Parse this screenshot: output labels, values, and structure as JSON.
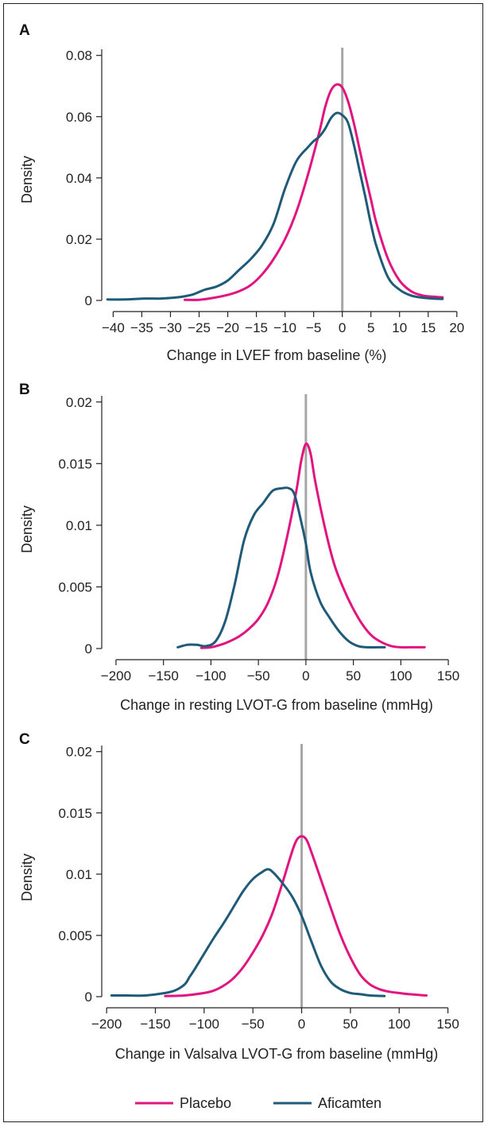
{
  "colors": {
    "placebo": "#e0157f",
    "aficamten": "#1f5a78",
    "zero_line": "#a6a6a6",
    "axis": "#222222"
  },
  "legend": {
    "position": "bottom-center",
    "items": [
      {
        "label": "Placebo",
        "color": "#e0157f"
      },
      {
        "label": "Aficamten",
        "color": "#1f5a78"
      }
    ]
  },
  "chart_data": [
    {
      "type": "line",
      "panel": "A",
      "xlabel": "Change in LVEF from baseline (%)",
      "ylabel": "Density",
      "xlim": [
        -42,
        21
      ],
      "ylim": [
        0,
        0.082
      ],
      "xticks": [
        -40,
        -35,
        -30,
        -25,
        -20,
        -15,
        -10,
        -5,
        0,
        5,
        10,
        15,
        20
      ],
      "xtick_labels": [
        "−40",
        "−35",
        "−30",
        "−25",
        "−20",
        "−15",
        "−10",
        "−5",
        "0",
        "5",
        "10",
        "15",
        "20"
      ],
      "yticks": [
        0,
        0.02,
        0.04,
        0.06,
        0.08
      ],
      "ytick_labels": [
        "0",
        "0.02",
        "0.04",
        "0.06",
        "0.08"
      ],
      "reference_line_x": 0,
      "series": [
        {
          "name": "Placebo",
          "color": "#e0157f",
          "x": [
            -27.5,
            -25,
            -22,
            -20,
            -18,
            -16,
            -14,
            -12,
            -10,
            -8,
            -6,
            -4,
            -3,
            -2,
            -1,
            0,
            1,
            2,
            3,
            4,
            5,
            6,
            8,
            10,
            12,
            14,
            16,
            17.5
          ],
          "y": [
            0.0002,
            0.0002,
            0.001,
            0.0018,
            0.003,
            0.005,
            0.0085,
            0.0135,
            0.02,
            0.029,
            0.041,
            0.055,
            0.063,
            0.0685,
            0.0705,
            0.0695,
            0.065,
            0.058,
            0.0495,
            0.041,
            0.033,
            0.025,
            0.0135,
            0.0065,
            0.003,
            0.0016,
            0.0012,
            0.001
          ]
        },
        {
          "name": "Aficamten",
          "color": "#1f5a78",
          "x": [
            -41,
            -38,
            -35,
            -32,
            -30,
            -28,
            -26,
            -24,
            -22,
            -20,
            -18,
            -16,
            -14,
            -12,
            -10,
            -8,
            -6,
            -5,
            -4,
            -3,
            -2,
            -1,
            0,
            1,
            2,
            3,
            4,
            5,
            6,
            8,
            10,
            12,
            14,
            16,
            17.5
          ],
          "y": [
            0.0003,
            0.0003,
            0.0006,
            0.0006,
            0.0008,
            0.0012,
            0.002,
            0.0035,
            0.0045,
            0.0065,
            0.01,
            0.0135,
            0.018,
            0.025,
            0.0365,
            0.0455,
            0.05,
            0.052,
            0.0535,
            0.056,
            0.0595,
            0.0612,
            0.0605,
            0.058,
            0.051,
            0.0425,
            0.034,
            0.025,
            0.0175,
            0.0075,
            0.0035,
            0.0016,
            0.0009,
            0.0006,
            0.0005
          ]
        }
      ]
    },
    {
      "type": "line",
      "panel": "B",
      "xlabel": "Change in resting LVOT-G from baseline (mmHg)",
      "ylabel": "Density",
      "xlim": [
        -215,
        165
      ],
      "ylim": [
        0,
        0.0205
      ],
      "xticks": [
        -200,
        -150,
        -100,
        -50,
        0,
        50,
        100,
        150
      ],
      "xtick_labels": [
        "−200",
        "−150",
        "−100",
        "−50",
        "0",
        "50",
        "100",
        "150"
      ],
      "yticks": [
        0,
        0.005,
        0.01,
        0.015,
        0.02
      ],
      "ytick_labels": [
        "0",
        "0.005",
        "0.01",
        "0.015",
        "0.02"
      ],
      "reference_line_x": 0,
      "series": [
        {
          "name": "Placebo",
          "color": "#e0157f",
          "x": [
            -110,
            -100,
            -90,
            -80,
            -70,
            -60,
            -50,
            -40,
            -30,
            -20,
            -10,
            -5,
            0,
            5,
            10,
            20,
            30,
            40,
            50,
            60,
            70,
            80,
            90,
            100,
            110,
            125
          ],
          "y": [
            5e-05,
            0.0001,
            0.0003,
            0.0006,
            0.001,
            0.0016,
            0.0024,
            0.0037,
            0.0058,
            0.009,
            0.0128,
            0.0152,
            0.0166,
            0.0158,
            0.0135,
            0.0098,
            0.0068,
            0.0048,
            0.0032,
            0.0019,
            0.001,
            0.0005,
            0.0002,
            0.0001,
            0.0001,
            0.0001
          ]
        },
        {
          "name": "Aficamten",
          "color": "#1f5a78",
          "x": [
            -135,
            -125,
            -115,
            -105,
            -95,
            -85,
            -75,
            -65,
            -55,
            -45,
            -35,
            -25,
            -18,
            -12,
            -5,
            0,
            5,
            15,
            25,
            35,
            45,
            55,
            65,
            75,
            83
          ],
          "y": [
            0.0001,
            0.0003,
            0.0003,
            0.0002,
            0.0006,
            0.0022,
            0.0052,
            0.0088,
            0.0108,
            0.0118,
            0.0128,
            0.013,
            0.013,
            0.0125,
            0.0103,
            0.0085,
            0.0062,
            0.0038,
            0.0025,
            0.0014,
            0.0006,
            0.0002,
            0.0001,
            0.0001,
            0.0001
          ]
        }
      ]
    },
    {
      "type": "line",
      "panel": "C",
      "xlabel": "Change in Valsalva LVOT-G from baseline (mmHg)",
      "ylabel": "Density",
      "xlim": [
        -205,
        165
      ],
      "ylim": [
        0,
        0.0205
      ],
      "xticks": [
        -200,
        -150,
        -100,
        -50,
        0,
        50,
        100,
        150
      ],
      "xtick_labels": [
        "−200",
        "−150",
        "−100",
        "−50",
        "0",
        "50",
        "100",
        "150"
      ],
      "yticks": [
        0,
        0.005,
        0.01,
        0.015,
        0.02
      ],
      "ytick_labels": [
        "0",
        "0.005",
        "0.01",
        "0.015",
        "0.02"
      ],
      "reference_line_x": 0,
      "series": [
        {
          "name": "Placebo",
          "color": "#e0157f",
          "x": [
            -140,
            -120,
            -100,
            -90,
            -80,
            -70,
            -60,
            -50,
            -40,
            -30,
            -20,
            -10,
            -5,
            0,
            5,
            10,
            20,
            30,
            40,
            50,
            60,
            70,
            80,
            90,
            100,
            110,
            128
          ],
          "y": [
            5e-05,
            0.0001,
            0.0003,
            0.0005,
            0.0009,
            0.0015,
            0.0024,
            0.0036,
            0.005,
            0.0068,
            0.0092,
            0.0118,
            0.0128,
            0.0131,
            0.0128,
            0.0118,
            0.0095,
            0.0072,
            0.005,
            0.0032,
            0.0018,
            0.001,
            0.0006,
            0.0004,
            0.0003,
            0.0002,
            0.0001
          ]
        },
        {
          "name": "Aficamten",
          "color": "#1f5a78",
          "x": [
            -195,
            -180,
            -160,
            -140,
            -130,
            -120,
            -115,
            -110,
            -100,
            -90,
            -80,
            -70,
            -60,
            -50,
            -40,
            -35,
            -30,
            -20,
            -10,
            0,
            10,
            20,
            30,
            40,
            50,
            60,
            70,
            85
          ],
          "y": [
            0.0001,
            0.0001,
            0.0001,
            0.0003,
            0.0005,
            0.001,
            0.0016,
            0.0022,
            0.0035,
            0.0048,
            0.006,
            0.0073,
            0.0086,
            0.0096,
            0.0102,
            0.0104,
            0.0102,
            0.0093,
            0.0082,
            0.0066,
            0.0045,
            0.0025,
            0.0012,
            0.0006,
            0.0003,
            0.0002,
            0.0001,
            5e-05
          ]
        }
      ]
    }
  ]
}
